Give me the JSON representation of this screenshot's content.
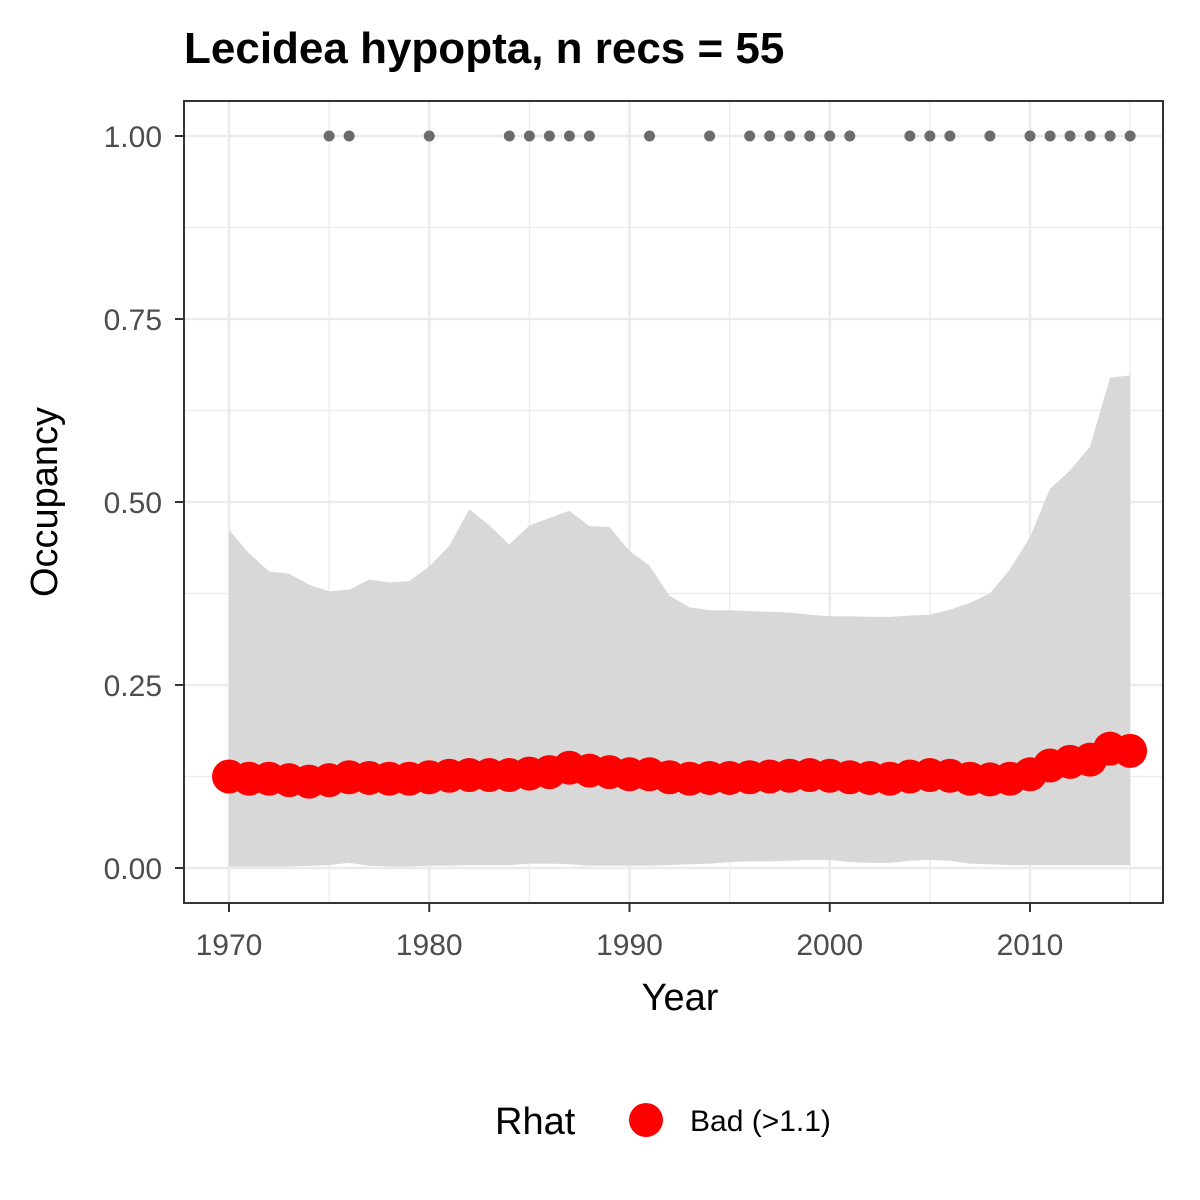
{
  "chart_data": {
    "type": "line",
    "title": "Lecidea hypopta, n recs = 55",
    "xlabel": "Year",
    "ylabel": "Occupancy",
    "xlim": [
      1967.8,
      1916.7
    ],
    "ylim": [
      -0.05,
      1.05
    ],
    "x_ticks": [
      1970,
      1980,
      1990,
      2000,
      2010
    ],
    "x_tick_labels": [
      "1970",
      "1980",
      "1990",
      "2000",
      "2010"
    ],
    "y_ticks": [
      0,
      0.25,
      0.5,
      0.75,
      1.0
    ],
    "y_tick_labels": [
      "0.00",
      "0.25",
      "0.50",
      "0.75",
      "1.00"
    ],
    "grid": true,
    "years": [
      1970,
      1971,
      1972,
      1973,
      1974,
      1975,
      1976,
      1977,
      1978,
      1979,
      1980,
      1981,
      1982,
      1983,
      1984,
      1985,
      1986,
      1987,
      1988,
      1989,
      1990,
      1991,
      1992,
      1993,
      1994,
      1995,
      1996,
      1997,
      1998,
      1999,
      2000,
      2001,
      2002,
      2003,
      2004,
      2005,
      2006,
      2007,
      2008,
      2009,
      2010,
      2011,
      2012,
      2013,
      2014,
      2015
    ],
    "occupancy": [
      0.125,
      0.122,
      0.122,
      0.12,
      0.118,
      0.12,
      0.124,
      0.123,
      0.122,
      0.122,
      0.124,
      0.126,
      0.127,
      0.127,
      0.127,
      0.129,
      0.131,
      0.137,
      0.133,
      0.131,
      0.128,
      0.128,
      0.124,
      0.122,
      0.123,
      0.123,
      0.124,
      0.125,
      0.126,
      0.127,
      0.126,
      0.124,
      0.123,
      0.122,
      0.125,
      0.127,
      0.126,
      0.122,
      0.121,
      0.122,
      0.128,
      0.14,
      0.145,
      0.148,
      0.163,
      0.16
    ],
    "upper_ci": [
      0.462,
      0.43,
      0.405,
      0.402,
      0.387,
      0.378,
      0.38,
      0.394,
      0.39,
      0.392,
      0.412,
      0.44,
      0.49,
      0.468,
      0.442,
      0.468,
      0.478,
      0.488,
      0.467,
      0.466,
      0.433,
      0.413,
      0.372,
      0.356,
      0.352,
      0.352,
      0.351,
      0.35,
      0.349,
      0.346,
      0.344,
      0.344,
      0.343,
      0.343,
      0.345,
      0.346,
      0.353,
      0.362,
      0.375,
      0.408,
      0.452,
      0.518,
      0.543,
      0.576,
      0.67,
      0.673
    ],
    "lower_ci": [
      0.002,
      0.002,
      0.002,
      0.002,
      0.003,
      0.004,
      0.007,
      0.003,
      0.002,
      0.002,
      0.003,
      0.003,
      0.004,
      0.004,
      0.004,
      0.006,
      0.006,
      0.005,
      0.003,
      0.003,
      0.003,
      0.003,
      0.004,
      0.005,
      0.006,
      0.008,
      0.009,
      0.009,
      0.01,
      0.011,
      0.011,
      0.008,
      0.007,
      0.007,
      0.01,
      0.011,
      0.01,
      0.006,
      0.005,
      0.004,
      0.004,
      0.004,
      0.004,
      0.004,
      0.004,
      0.004
    ],
    "record_years": [
      1975,
      1976,
      1980,
      1984,
      1985,
      1986,
      1987,
      1988,
      1991,
      1994,
      1996,
      1997,
      1998,
      1999,
      2000,
      2001,
      2004,
      2005,
      2006,
      2008,
      2010,
      2011,
      2012,
      2013,
      2014,
      2015
    ],
    "record_value": 1.0,
    "legend": {
      "title": "Rhat",
      "placement": "bottom",
      "items": [
        {
          "label": "Bad (>1.1)",
          "color": "#ff0000"
        }
      ]
    },
    "colors": {
      "line_points": "#ff0000",
      "ribbon": "#d6d6d6",
      "records": "#6b6b6b",
      "grid": "#ebebeb",
      "panel_border": "#333333"
    }
  }
}
